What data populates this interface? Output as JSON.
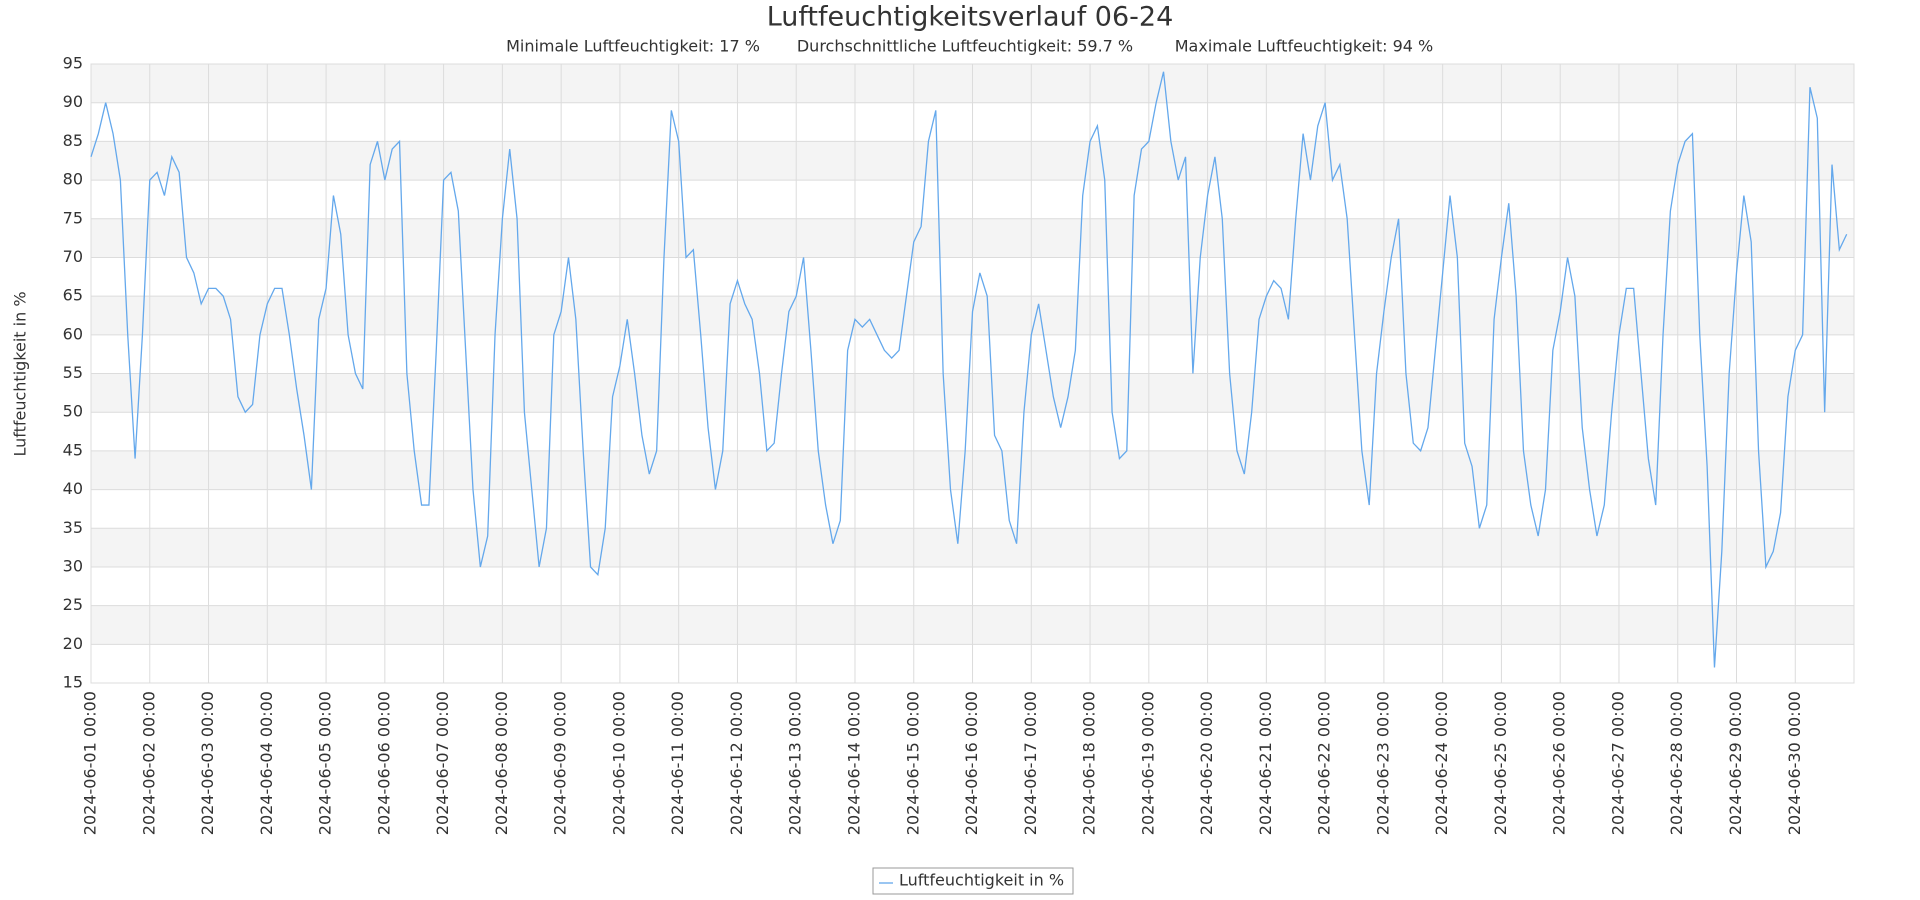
{
  "chart_data": {
    "type": "line",
    "title": "Luftfeuchtigkeitsverlauf 06-24",
    "subtitle": [
      "Minimale Luftfeuchtigkeit: 17 %",
      "Durchschnittliche Luftfeuchtigkeit: 59.7 %",
      "Maximale Luftfeuchtigkeit: 94 %"
    ],
    "y_label": "Luftfeuchtigkeit in %",
    "legend": "bottom",
    "grid": true,
    "ylim": [
      15,
      95
    ],
    "yticks": [
      15,
      20,
      25,
      30,
      35,
      40,
      45,
      50,
      55,
      60,
      65,
      70,
      75,
      80,
      85,
      90,
      95
    ],
    "xlim": [
      "2024-06-01 00:00",
      "2024-06-30 23:59"
    ],
    "xticks": [
      "2024-06-01 00:00",
      "2024-06-02 00:00",
      "2024-06-03 00:00",
      "2024-06-04 00:00",
      "2024-06-05 00:00",
      "2024-06-06 00:00",
      "2024-06-07 00:00",
      "2024-06-08 00:00",
      "2024-06-09 00:00",
      "2024-06-10 00:00",
      "2024-06-11 00:00",
      "2024-06-12 00:00",
      "2024-06-13 00:00",
      "2024-06-14 00:00",
      "2024-06-15 00:00",
      "2024-06-16 00:00",
      "2024-06-17 00:00",
      "2024-06-18 00:00",
      "2024-06-19 00:00",
      "2024-06-20 00:00",
      "2024-06-21 00:00",
      "2024-06-22 00:00",
      "2024-06-23 00:00",
      "2024-06-24 00:00",
      "2024-06-25 00:00",
      "2024-06-26 00:00",
      "2024-06-27 00:00",
      "2024-06-28 00:00",
      "2024-06-29 00:00",
      "2024-06-30 00:00"
    ],
    "x": [
      "2024-06-01 00:00",
      "2024-06-01 03:00",
      "2024-06-01 06:00",
      "2024-06-01 09:00",
      "2024-06-01 12:00",
      "2024-06-01 15:00",
      "2024-06-01 18:00",
      "2024-06-01 21:00",
      "2024-06-02 00:00",
      "2024-06-02 03:00",
      "2024-06-02 06:00",
      "2024-06-02 09:00",
      "2024-06-02 12:00",
      "2024-06-02 15:00",
      "2024-06-02 18:00",
      "2024-06-02 21:00",
      "2024-06-03 00:00",
      "2024-06-03 03:00",
      "2024-06-03 06:00",
      "2024-06-03 09:00",
      "2024-06-03 12:00",
      "2024-06-03 15:00",
      "2024-06-03 18:00",
      "2024-06-03 21:00",
      "2024-06-04 00:00",
      "2024-06-04 03:00",
      "2024-06-04 06:00",
      "2024-06-04 09:00",
      "2024-06-04 12:00",
      "2024-06-04 15:00",
      "2024-06-04 18:00",
      "2024-06-04 21:00",
      "2024-06-05 00:00",
      "2024-06-05 03:00",
      "2024-06-05 06:00",
      "2024-06-05 09:00",
      "2024-06-05 12:00",
      "2024-06-05 15:00",
      "2024-06-05 18:00",
      "2024-06-05 21:00",
      "2024-06-06 00:00",
      "2024-06-06 03:00",
      "2024-06-06 06:00",
      "2024-06-06 09:00",
      "2024-06-06 12:00",
      "2024-06-06 15:00",
      "2024-06-06 18:00",
      "2024-06-06 21:00",
      "2024-06-07 00:00",
      "2024-06-07 03:00",
      "2024-06-07 06:00",
      "2024-06-07 09:00",
      "2024-06-07 12:00",
      "2024-06-07 15:00",
      "2024-06-07 18:00",
      "2024-06-07 21:00",
      "2024-06-08 00:00",
      "2024-06-08 03:00",
      "2024-06-08 06:00",
      "2024-06-08 09:00",
      "2024-06-08 12:00",
      "2024-06-08 15:00",
      "2024-06-08 18:00",
      "2024-06-08 21:00",
      "2024-06-09 00:00",
      "2024-06-09 03:00",
      "2024-06-09 06:00",
      "2024-06-09 09:00",
      "2024-06-09 12:00",
      "2024-06-09 15:00",
      "2024-06-09 18:00",
      "2024-06-09 21:00",
      "2024-06-10 00:00",
      "2024-06-10 03:00",
      "2024-06-10 06:00",
      "2024-06-10 09:00",
      "2024-06-10 12:00",
      "2024-06-10 15:00",
      "2024-06-10 18:00",
      "2024-06-10 21:00",
      "2024-06-11 00:00",
      "2024-06-11 03:00",
      "2024-06-11 06:00",
      "2024-06-11 09:00",
      "2024-06-11 12:00",
      "2024-06-11 15:00",
      "2024-06-11 18:00",
      "2024-06-11 21:00",
      "2024-06-12 00:00",
      "2024-06-12 03:00",
      "2024-06-12 06:00",
      "2024-06-12 09:00",
      "2024-06-12 12:00",
      "2024-06-12 15:00",
      "2024-06-12 18:00",
      "2024-06-12 21:00",
      "2024-06-13 00:00",
      "2024-06-13 03:00",
      "2024-06-13 06:00",
      "2024-06-13 09:00",
      "2024-06-13 12:00",
      "2024-06-13 15:00",
      "2024-06-13 18:00",
      "2024-06-13 21:00",
      "2024-06-14 00:00",
      "2024-06-14 03:00",
      "2024-06-14 06:00",
      "2024-06-14 09:00",
      "2024-06-14 12:00",
      "2024-06-14 15:00",
      "2024-06-14 18:00",
      "2024-06-14 21:00",
      "2024-06-15 00:00",
      "2024-06-15 03:00",
      "2024-06-15 06:00",
      "2024-06-15 09:00",
      "2024-06-15 12:00",
      "2024-06-15 15:00",
      "2024-06-15 18:00",
      "2024-06-15 21:00",
      "2024-06-16 00:00",
      "2024-06-16 03:00",
      "2024-06-16 06:00",
      "2024-06-16 09:00",
      "2024-06-16 12:00",
      "2024-06-16 15:00",
      "2024-06-16 18:00",
      "2024-06-16 21:00",
      "2024-06-17 00:00",
      "2024-06-17 03:00",
      "2024-06-17 06:00",
      "2024-06-17 09:00",
      "2024-06-17 12:00",
      "2024-06-17 15:00",
      "2024-06-17 18:00",
      "2024-06-17 21:00",
      "2024-06-18 00:00",
      "2024-06-18 03:00",
      "2024-06-18 06:00",
      "2024-06-18 09:00",
      "2024-06-18 12:00",
      "2024-06-18 15:00",
      "2024-06-18 18:00",
      "2024-06-18 21:00",
      "2024-06-19 00:00",
      "2024-06-19 03:00",
      "2024-06-19 06:00",
      "2024-06-19 09:00",
      "2024-06-19 12:00",
      "2024-06-19 15:00",
      "2024-06-19 18:00",
      "2024-06-19 21:00",
      "2024-06-20 00:00",
      "2024-06-20 03:00",
      "2024-06-20 06:00",
      "2024-06-20 09:00",
      "2024-06-20 12:00",
      "2024-06-20 15:00",
      "2024-06-20 18:00",
      "2024-06-20 21:00",
      "2024-06-21 00:00",
      "2024-06-21 03:00",
      "2024-06-21 06:00",
      "2024-06-21 09:00",
      "2024-06-21 12:00",
      "2024-06-21 15:00",
      "2024-06-21 18:00",
      "2024-06-21 21:00",
      "2024-06-22 00:00",
      "2024-06-22 03:00",
      "2024-06-22 06:00",
      "2024-06-22 09:00",
      "2024-06-22 12:00",
      "2024-06-22 15:00",
      "2024-06-22 18:00",
      "2024-06-22 21:00",
      "2024-06-23 00:00",
      "2024-06-23 03:00",
      "2024-06-23 06:00",
      "2024-06-23 09:00",
      "2024-06-23 12:00",
      "2024-06-23 15:00",
      "2024-06-23 18:00",
      "2024-06-23 21:00",
      "2024-06-24 00:00",
      "2024-06-24 03:00",
      "2024-06-24 06:00",
      "2024-06-24 09:00",
      "2024-06-24 12:00",
      "2024-06-24 15:00",
      "2024-06-24 18:00",
      "2024-06-24 21:00",
      "2024-06-25 00:00",
      "2024-06-25 03:00",
      "2024-06-25 06:00",
      "2024-06-25 09:00",
      "2024-06-25 12:00",
      "2024-06-25 15:00",
      "2024-06-25 18:00",
      "2024-06-25 21:00",
      "2024-06-26 00:00",
      "2024-06-26 03:00",
      "2024-06-26 06:00",
      "2024-06-26 09:00",
      "2024-06-26 12:00",
      "2024-06-26 15:00",
      "2024-06-26 18:00",
      "2024-06-26 21:00",
      "2024-06-27 00:00",
      "2024-06-27 03:00",
      "2024-06-27 06:00",
      "2024-06-27 09:00",
      "2024-06-27 12:00",
      "2024-06-27 15:00",
      "2024-06-27 18:00",
      "2024-06-27 21:00",
      "2024-06-28 00:00",
      "2024-06-28 03:00",
      "2024-06-28 06:00",
      "2024-06-28 09:00",
      "2024-06-28 12:00",
      "2024-06-28 15:00",
      "2024-06-28 18:00",
      "2024-06-28 21:00",
      "2024-06-29 00:00",
      "2024-06-29 03:00",
      "2024-06-29 06:00",
      "2024-06-29 09:00",
      "2024-06-29 12:00",
      "2024-06-29 15:00",
      "2024-06-29 18:00",
      "2024-06-29 21:00",
      "2024-06-30 00:00",
      "2024-06-30 03:00",
      "2024-06-30 06:00",
      "2024-06-30 09:00",
      "2024-06-30 12:00",
      "2024-06-30 15:00",
      "2024-06-30 18:00",
      "2024-06-30 21:00"
    ],
    "series": [
      {
        "name": "Luftfeuchtigkeit in %",
        "color": "#64a8ec",
        "values": [
          83,
          86,
          90,
          86,
          80,
          60,
          44,
          60,
          80,
          81,
          78,
          83,
          81,
          70,
          68,
          64,
          66,
          66,
          65,
          62,
          52,
          50,
          51,
          60,
          64,
          66,
          66,
          60,
          53,
          47,
          40,
          62,
          66,
          78,
          73,
          60,
          55,
          53,
          82,
          85,
          80,
          84,
          85,
          55,
          45,
          38,
          38,
          58,
          80,
          81,
          76,
          58,
          40,
          30,
          34,
          60,
          75,
          84,
          75,
          50,
          40,
          30,
          35,
          60,
          63,
          70,
          62,
          45,
          30,
          29,
          35,
          52,
          56,
          62,
          55,
          47,
          42,
          45,
          70,
          89,
          85,
          70,
          71,
          60,
          48,
          40,
          45,
          64,
          67,
          64,
          62,
          55,
          45,
          46,
          55,
          63,
          65,
          70,
          58,
          45,
          38,
          33,
          36,
          58,
          62,
          61,
          62,
          60,
          58,
          57,
          58,
          65,
          72,
          74,
          85,
          89,
          55,
          40,
          33,
          45,
          63,
          68,
          65,
          47,
          45,
          36,
          33,
          50,
          60,
          64,
          58,
          52,
          48,
          52,
          58,
          78,
          85,
          87,
          80,
          50,
          44,
          45,
          78,
          84,
          85,
          90,
          94,
          85,
          80,
          83,
          55,
          70,
          78,
          83,
          75,
          55,
          45,
          42,
          50,
          62,
          65,
          67,
          66,
          62,
          75,
          86,
          80,
          87,
          90,
          80,
          82,
          75,
          60,
          45,
          38,
          55,
          63,
          70,
          75,
          55,
          46,
          45,
          48,
          58,
          68,
          78,
          70,
          46,
          43,
          35,
          38,
          62,
          70,
          77,
          65,
          45,
          38,
          34,
          40,
          58,
          63,
          70,
          65,
          48,
          40,
          34,
          38,
          50,
          60,
          66,
          66,
          55,
          44,
          38,
          60,
          76,
          82,
          85,
          86,
          60,
          43,
          17,
          32,
          55,
          68,
          78,
          72,
          45,
          30,
          32,
          37,
          52,
          58,
          60,
          92,
          88,
          50,
          82,
          71,
          73
        ]
      }
    ]
  }
}
